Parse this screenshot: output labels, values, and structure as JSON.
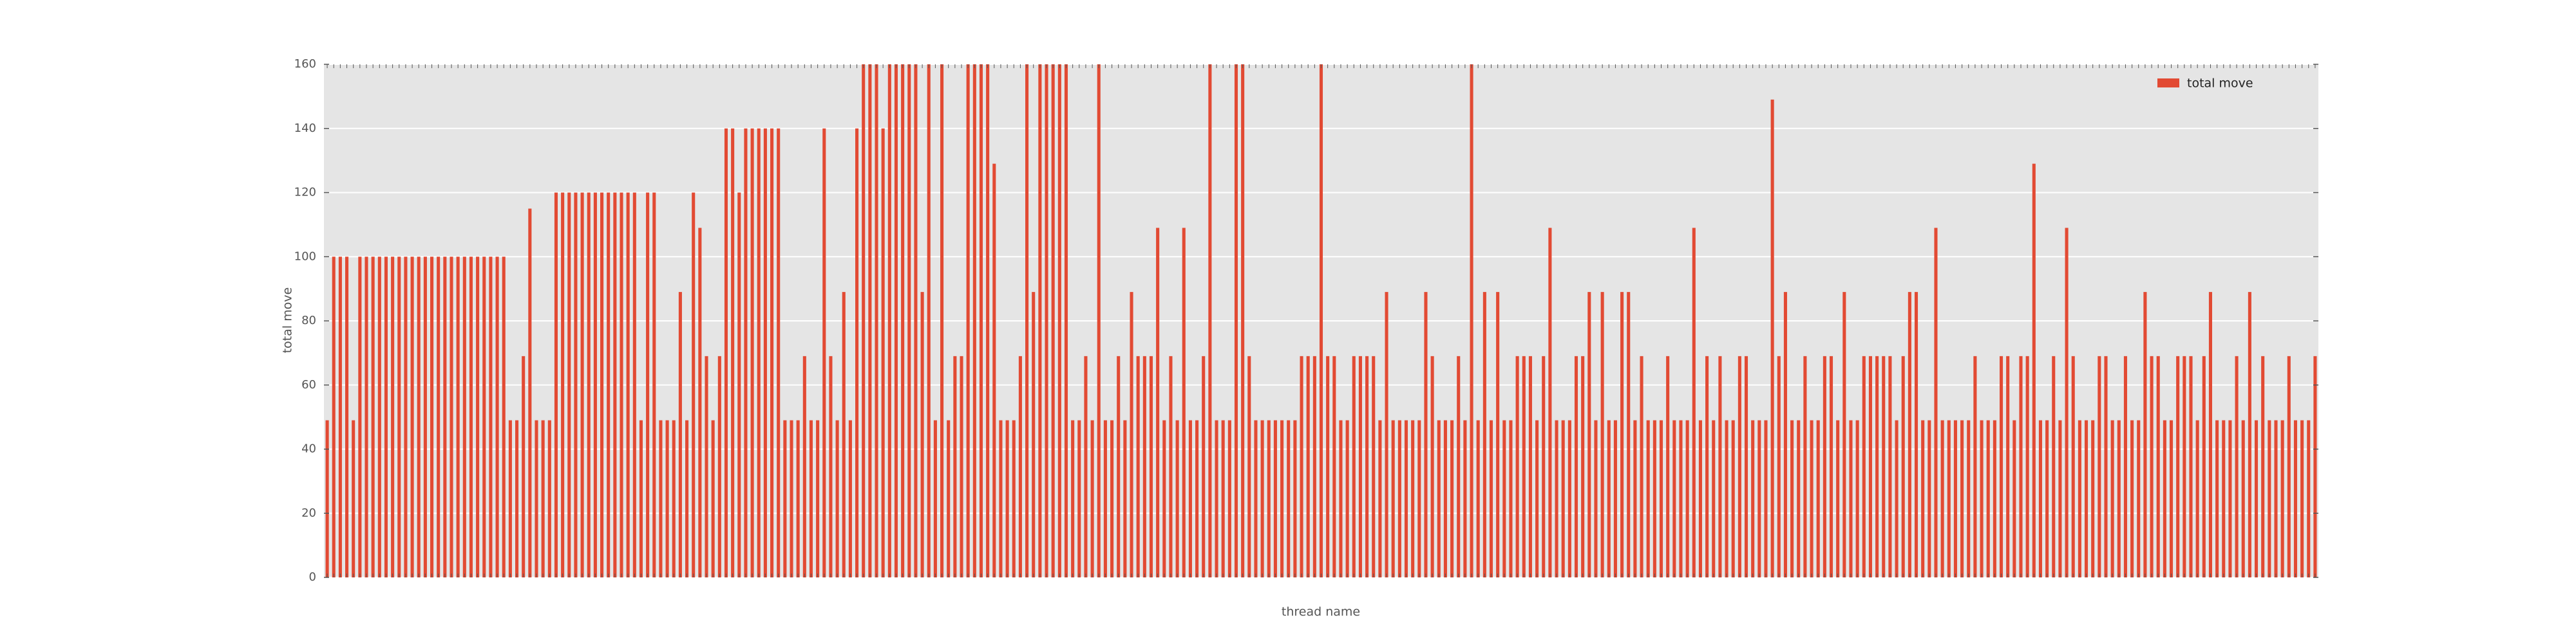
{
  "chart_data": {
    "type": "bar",
    "xlabel": "thread name",
    "ylabel": "total move",
    "categories": [
      null,
      null,
      null,
      null,
      null,
      null,
      null,
      null,
      null,
      null,
      null,
      null,
      null,
      null,
      null,
      null,
      null,
      null,
      null,
      null,
      null,
      null,
      null,
      null,
      null,
      null,
      null,
      null,
      null,
      null,
      null,
      null,
      null,
      null,
      null,
      null,
      null,
      null,
      null,
      null,
      null,
      null,
      null,
      null,
      null,
      null,
      null,
      null,
      null,
      null,
      null,
      null,
      null,
      null,
      null,
      null,
      null,
      null,
      null,
      null,
      null,
      null,
      null,
      null,
      null,
      null,
      null,
      null,
      null,
      null,
      null,
      null,
      null,
      null,
      null,
      null,
      null,
      null,
      null,
      null,
      null,
      null,
      null,
      null,
      null,
      null,
      null,
      null,
      null,
      null,
      null,
      null,
      null,
      null,
      null,
      null,
      null,
      null,
      null,
      null,
      null,
      null,
      null,
      null,
      null,
      null,
      null,
      null,
      null,
      null,
      null,
      null,
      null,
      null,
      null,
      null,
      null,
      null,
      null,
      null,
      null,
      null,
      null,
      null,
      null,
      null,
      null,
      null,
      null,
      null,
      null,
      null,
      null,
      null,
      null,
      null,
      null,
      null,
      null,
      null,
      null,
      null,
      null,
      null,
      null,
      null,
      null,
      null,
      null,
      null,
      null,
      null,
      null,
      null,
      null,
      null,
      null,
      null,
      null,
      null,
      null,
      null,
      null,
      null,
      null,
      null,
      null,
      null,
      null,
      null,
      null,
      null,
      null,
      null,
      null,
      null,
      null,
      null,
      null,
      null,
      null,
      null,
      null,
      null,
      null,
      null,
      null,
      null,
      null,
      null,
      null,
      null,
      null,
      null,
      null,
      null,
      null,
      null,
      null,
      null,
      null,
      null,
      null,
      null,
      null,
      null,
      null,
      null,
      null,
      null,
      null,
      null,
      null,
      null,
      null,
      null,
      null,
      null,
      null,
      null,
      null,
      null,
      null,
      null,
      null,
      null,
      null,
      null,
      null,
      null,
      null,
      null,
      null,
      null,
      null,
      null,
      null,
      null,
      null,
      null,
      null,
      null,
      null,
      null,
      null,
      null,
      null,
      null,
      null,
      null,
      null,
      null,
      null,
      null,
      null,
      null,
      null,
      null,
      null,
      null,
      null,
      null,
      null,
      null,
      null,
      null,
      null,
      null,
      null,
      null,
      null,
      null,
      null,
      null,
      null,
      null,
      null,
      null,
      null,
      null,
      null,
      null,
      null,
      null,
      null,
      null,
      null,
      null,
      null,
      null,
      null,
      null,
      null,
      null,
      null,
      null,
      null,
      null,
      null,
      null,
      null,
      null,
      null,
      null,
      null
    ],
    "series": [
      {
        "name": "total move",
        "color": "#e24a33",
        "values": [
          49,
          100,
          100,
          100,
          49,
          100,
          100,
          100,
          100,
          100,
          100,
          100,
          100,
          100,
          100,
          100,
          100,
          100,
          100,
          100,
          100,
          100,
          100,
          100,
          100,
          100,
          100,
          100,
          49,
          49,
          69,
          115,
          49,
          49,
          49,
          120,
          120,
          120,
          120,
          120,
          120,
          120,
          120,
          120,
          120,
          120,
          120,
          120,
          49,
          120,
          120,
          49,
          49,
          49,
          89,
          49,
          120,
          109,
          69,
          49,
          69,
          140,
          140,
          120,
          140,
          140,
          140,
          140,
          140,
          140,
          49,
          49,
          49,
          69,
          49,
          49,
          140,
          69,
          49,
          89,
          49,
          140,
          160,
          160,
          160,
          140,
          160,
          160,
          160,
          160,
          160,
          89,
          160,
          49,
          160,
          49,
          69,
          69,
          160,
          160,
          160,
          160,
          129,
          49,
          49,
          49,
          69,
          160,
          89,
          160,
          160,
          160,
          160,
          160,
          49,
          49,
          69,
          49,
          160,
          49,
          49,
          69,
          49,
          89,
          69,
          69,
          69,
          109,
          49,
          69,
          49,
          109,
          49,
          49,
          69,
          160,
          49,
          49,
          49,
          160,
          160,
          69,
          49,
          49,
          49,
          49,
          49,
          49,
          49,
          69,
          69,
          69,
          160,
          69,
          69,
          49,
          49,
          69,
          69,
          69,
          69,
          49,
          89,
          49,
          49,
          49,
          49,
          49,
          89,
          69,
          49,
          49,
          49,
          69,
          49,
          160,
          49,
          89,
          49,
          89,
          49,
          49,
          69,
          69,
          69,
          49,
          69,
          109,
          49,
          49,
          49,
          69,
          69,
          89,
          49,
          89,
          49,
          49,
          89,
          89,
          49,
          69,
          49,
          49,
          49,
          69,
          49,
          49,
          49,
          109,
          49,
          69,
          49,
          69,
          49,
          49,
          69,
          69,
          49,
          49,
          49,
          149,
          69,
          89,
          49,
          49,
          69,
          49,
          49,
          69,
          69,
          49,
          89,
          49,
          49,
          69,
          69,
          69,
          69,
          69,
          49,
          69,
          89,
          89,
          49,
          49,
          109,
          49,
          49,
          49,
          49,
          49,
          69,
          49,
          49,
          49,
          69,
          69,
          49,
          69,
          69,
          129,
          49,
          49,
          69,
          49,
          109,
          69,
          49,
          49,
          49,
          69,
          69,
          49,
          49,
          69,
          49,
          49,
          89,
          69,
          69,
          49,
          49,
          69,
          69,
          69,
          49,
          69,
          89,
          49,
          49,
          49,
          69,
          49,
          89,
          49,
          69,
          49,
          49,
          49,
          69,
          49,
          49,
          49,
          69
        ]
      }
    ],
    "ylim": [
      0,
      160
    ],
    "yticks": [
      0,
      20,
      40,
      60,
      80,
      100,
      120,
      140,
      160
    ],
    "grid": true,
    "legend": "upper right"
  }
}
